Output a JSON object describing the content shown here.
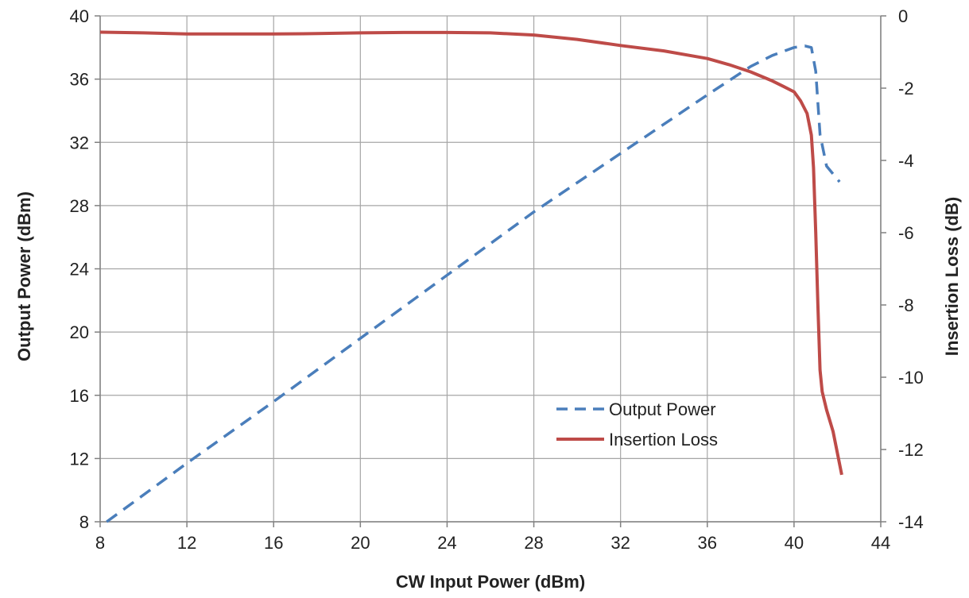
{
  "chart_data": {
    "type": "line",
    "title": "",
    "xlabel": "CW Input Power (dBm)",
    "ylabel_left": "Output Power (dBm)",
    "ylabel_right": "Insertion Loss (dB)",
    "xlim": [
      8,
      44
    ],
    "ylim_left": [
      8,
      40
    ],
    "ylim_right": [
      -14,
      0
    ],
    "x_ticks": [
      8,
      12,
      16,
      20,
      24,
      28,
      32,
      36,
      40,
      44
    ],
    "y_left_ticks": [
      8,
      12,
      16,
      20,
      24,
      28,
      32,
      36,
      40
    ],
    "y_right_ticks": [
      0,
      -2,
      -4,
      -6,
      -8,
      -10,
      -12,
      -14
    ],
    "grid": true,
    "legend_position": "bottom-right",
    "colors": {
      "output_power": "#4a7ebb",
      "insertion_loss": "#be4b48",
      "grid": "#a6a6a6",
      "axis": "#808080"
    },
    "series": [
      {
        "name": "Output Power",
        "axis": "left",
        "style": "dashed",
        "x": [
          8.3,
          12,
          16,
          20,
          24,
          28,
          32,
          36,
          38,
          39,
          40,
          40.5,
          40.8,
          41,
          41.2,
          41.5,
          41.8,
          42.1
        ],
        "y": [
          8.0,
          11.7,
          15.6,
          19.6,
          23.6,
          27.6,
          31.3,
          35.0,
          36.8,
          37.5,
          38.0,
          38.1,
          38.0,
          36.5,
          32.5,
          30.5,
          30.0,
          29.5
        ]
      },
      {
        "name": "Insertion Loss",
        "axis": "right",
        "style": "solid",
        "x": [
          8,
          10,
          12,
          14,
          16,
          18,
          20,
          22,
          24,
          26,
          28,
          30,
          32,
          34,
          36,
          37,
          38,
          39,
          39.5,
          40,
          40.3,
          40.6,
          40.8,
          40.9,
          41,
          41.1,
          41.2,
          41.3,
          41.5,
          41.8,
          42.2
        ],
        "y": [
          -0.45,
          -0.47,
          -0.5,
          -0.5,
          -0.5,
          -0.49,
          -0.47,
          -0.46,
          -0.46,
          -0.47,
          -0.53,
          -0.65,
          -0.82,
          -0.97,
          -1.18,
          -1.35,
          -1.55,
          -1.8,
          -1.95,
          -2.1,
          -2.35,
          -2.7,
          -3.3,
          -4.2,
          -6.0,
          -8.0,
          -9.8,
          -10.4,
          -10.9,
          -11.5,
          -12.7
        ]
      }
    ]
  }
}
